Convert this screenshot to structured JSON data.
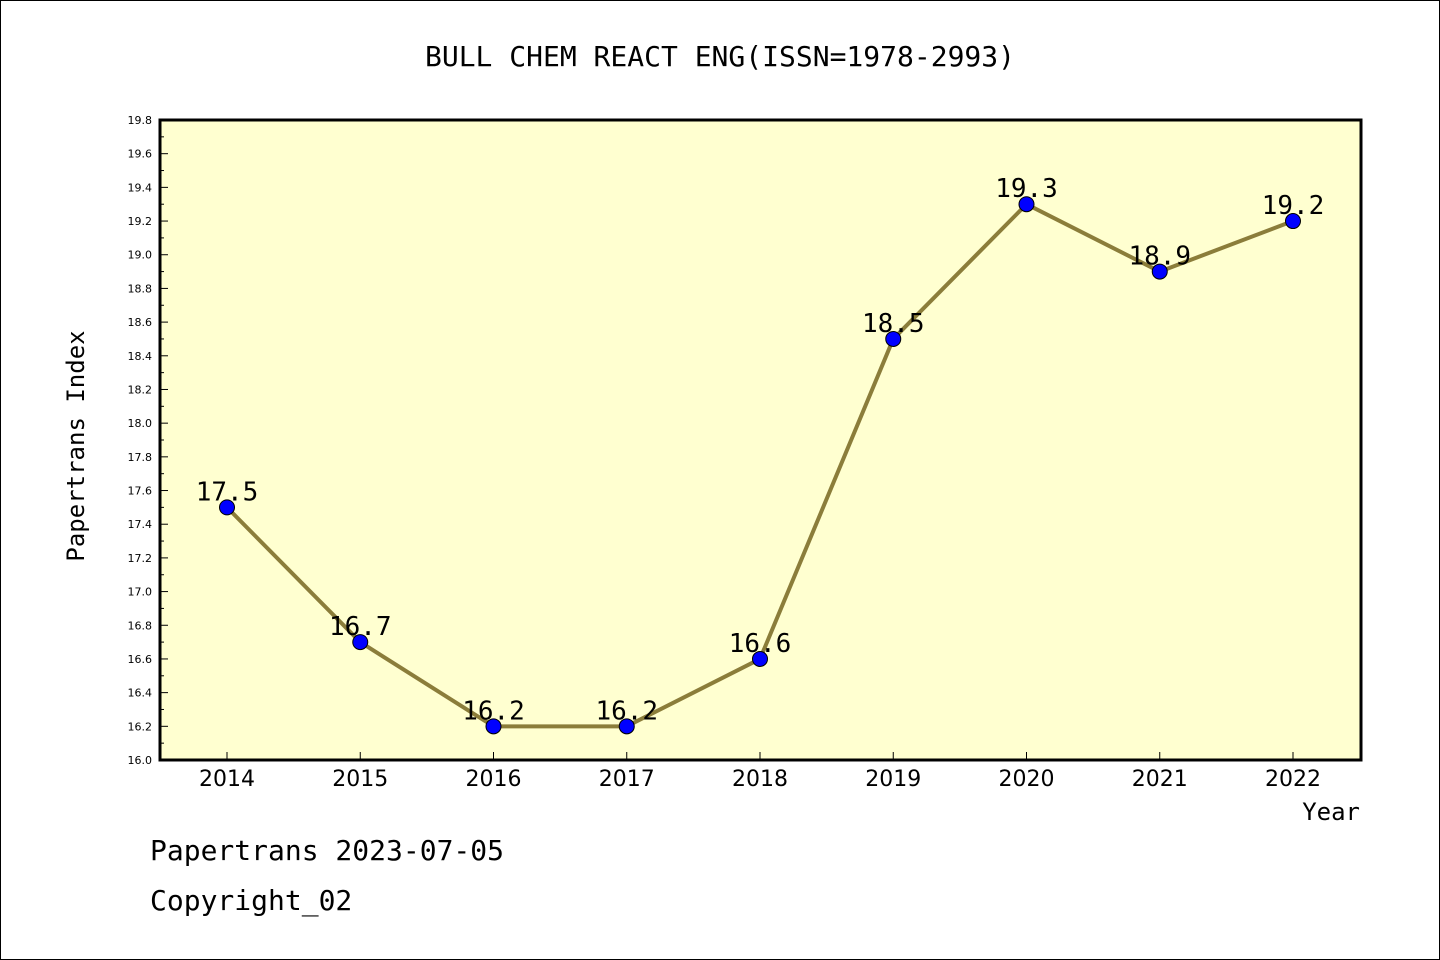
{
  "chart_data": {
    "type": "line",
    "title": "BULL CHEM REACT ENG(ISSN=1978-2993)",
    "xlabel": "Year",
    "ylabel": "Papertrans Index",
    "categories": [
      "2014",
      "2015",
      "2016",
      "2017",
      "2018",
      "2019",
      "2020",
      "2021",
      "2022"
    ],
    "series": [
      {
        "values": [
          17.5,
          16.7,
          16.2,
          16.2,
          16.6,
          18.5,
          19.3,
          18.9,
          19.2
        ],
        "data_labels": [
          "17.5",
          "16.7",
          "16.2",
          "16.2",
          "16.6",
          "18.5",
          "19.3",
          "18.9",
          "19.2"
        ],
        "line_color": "#8b7d3a",
        "marker_color": "#0000ff"
      }
    ],
    "ylim": [
      16.0,
      19.8
    ],
    "yticks": [
      "16.0",
      "16.2",
      "16.4",
      "16.6",
      "16.8",
      "17.0",
      "17.2",
      "17.4",
      "17.6",
      "17.8",
      "18.0",
      "18.2",
      "18.4",
      "18.6",
      "18.8",
      "19.0",
      "19.2",
      "19.4",
      "19.6",
      "19.8"
    ],
    "plot_background": "#ffffd0",
    "grid": false,
    "legend": "none"
  },
  "footer": {
    "line1": "Papertrans 2023-07-05",
    "line2": "Copyright_02"
  }
}
